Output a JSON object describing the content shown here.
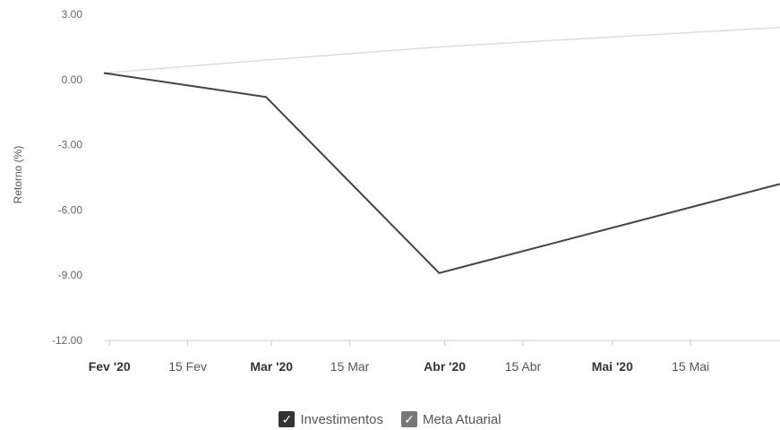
{
  "chart_data": {
    "type": "line",
    "ylabel": "Retorno (%)",
    "ylim": [
      -12,
      3
    ],
    "yticks": [
      "3.00",
      "0.00",
      "-3.00",
      "-6.00",
      "-9.00",
      "-12.00"
    ],
    "ytick_values": [
      3,
      0,
      -3,
      -6,
      -9,
      -12
    ],
    "xlim": [
      "2020-01-31",
      "2020-05-31"
    ],
    "xticks": [
      {
        "label": "Fev '20",
        "date": "2020-02-01",
        "major": true
      },
      {
        "label": "15 Fev",
        "date": "2020-02-15",
        "major": false
      },
      {
        "label": "Mar '20",
        "date": "2020-03-01",
        "major": true
      },
      {
        "label": "15 Mar",
        "date": "2020-03-15",
        "major": false
      },
      {
        "label": "Abr '20",
        "date": "2020-04-01",
        "major": true
      },
      {
        "label": "15 Abr",
        "date": "2020-04-15",
        "major": false
      },
      {
        "label": "Mai '20",
        "date": "2020-05-01",
        "major": true
      },
      {
        "label": "15 Mai",
        "date": "2020-05-15",
        "major": false
      }
    ],
    "series": [
      {
        "name": "Investimentos",
        "color": "#444444",
        "points": [
          {
            "x": "2020-01-31",
            "y": 0.3
          },
          {
            "x": "2020-02-29",
            "y": -0.8
          },
          {
            "x": "2020-03-31",
            "y": -8.9
          },
          {
            "x": "2020-05-31",
            "y": -4.8
          }
        ]
      },
      {
        "name": "Meta Atuarial",
        "color": "#dddddd",
        "points": [
          {
            "x": "2020-01-31",
            "y": 0.3
          },
          {
            "x": "2020-02-29",
            "y": 0.9
          },
          {
            "x": "2020-03-31",
            "y": 1.5
          },
          {
            "x": "2020-05-31",
            "y": 2.4
          }
        ]
      }
    ],
    "grid": false,
    "legend_position": "bottom-center"
  },
  "legend": {
    "items": [
      {
        "label": "Investimentos",
        "checked": true,
        "check_color": "#333333"
      },
      {
        "label": "Meta Atuarial",
        "checked": true,
        "check_color": "#777777"
      }
    ]
  }
}
